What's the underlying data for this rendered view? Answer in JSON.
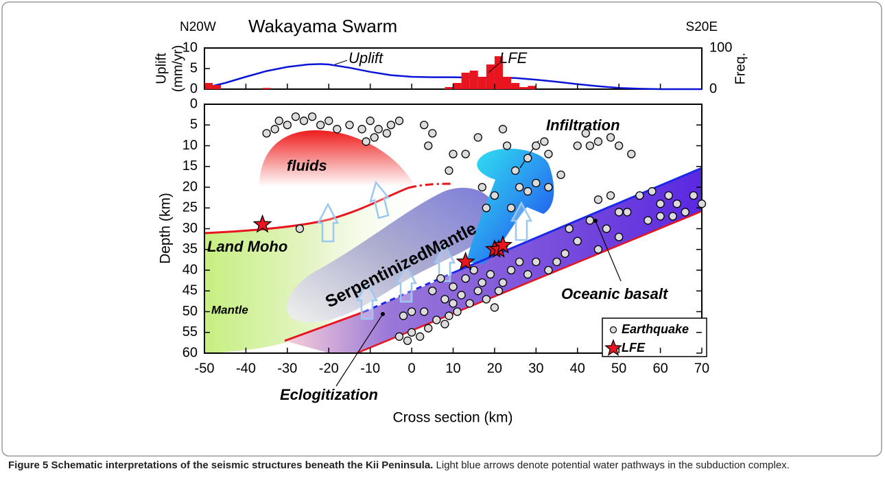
{
  "chart_data": [
    {
      "type": "combo",
      "title": "Wakayama Swarm",
      "direction_labels": [
        "N20W",
        "S20E"
      ],
      "y_label": [
        "Uplift",
        "(mm/yr)"
      ],
      "y2_label": "Freq.",
      "xlim": [
        -50,
        70
      ],
      "ylim": [
        0,
        10
      ],
      "yticks": [
        0,
        5,
        10
      ],
      "y2lim": [
        0,
        100
      ],
      "y2ticks": [
        0,
        100
      ],
      "series": [
        {
          "name": "Uplift",
          "type": "line",
          "color": "#0a14d8",
          "x": [
            -50,
            -45,
            -40,
            -35,
            -30,
            -25,
            -22,
            -20,
            -15,
            -10,
            -5,
            0,
            5,
            10,
            15,
            20,
            25,
            30,
            35,
            40,
            45,
            50,
            55,
            60,
            65,
            70
          ],
          "values": [
            0.3,
            1.5,
            3,
            4.4,
            5.4,
            6,
            6.1,
            6,
            5.2,
            4.2,
            3.4,
            3,
            2.9,
            2.9,
            2.8,
            2.8,
            2.7,
            2.3,
            1.8,
            1.2,
            0.7,
            0.3,
            0.1,
            0,
            0,
            0
          ]
        },
        {
          "name": "LFE",
          "type": "histogram",
          "axis": "y2",
          "color": "#e8141e",
          "bins": [
            -50,
            -48,
            -46,
            -44,
            -42,
            -40,
            -38,
            -36,
            -34,
            -32,
            -30,
            -28,
            -26,
            -24,
            -22,
            -20,
            -18,
            -16,
            -14,
            -12,
            -10,
            -8,
            -6,
            -4,
            -2,
            0,
            2,
            4,
            6,
            8,
            10,
            12,
            14,
            16,
            18,
            20,
            22,
            24,
            26,
            28,
            30
          ],
          "values": [
            15,
            10,
            0,
            0,
            0,
            0,
            0,
            3,
            0,
            0,
            0,
            0,
            0,
            0,
            0,
            0,
            0,
            0,
            0,
            0,
            0,
            0,
            0,
            0,
            0,
            0,
            0,
            0,
            0,
            5,
            15,
            40,
            45,
            30,
            60,
            80,
            30,
            15,
            5,
            8
          ]
        }
      ]
    },
    {
      "type": "scatter",
      "x_label": "Cross section (km)",
      "y_label": "Depth (km)",
      "xlim": [
        -50,
        70
      ],
      "xticks": [
        -50,
        -40,
        -30,
        -20,
        -10,
        0,
        10,
        20,
        30,
        40,
        50,
        60,
        70
      ],
      "ylim": [
        0,
        60
      ],
      "y_inverted": true,
      "yticks": [
        0,
        5,
        10,
        15,
        20,
        25,
        30,
        35,
        40,
        45,
        50,
        55,
        60
      ],
      "legend": "lower right",
      "series": [
        {
          "name": "Earthquake",
          "marker": "circle",
          "color": "#dcdcdc",
          "x": [
            -35,
            -33,
            -32,
            -30,
            -28,
            -26,
            -24,
            -22,
            -20,
            -18,
            -15,
            -12,
            -10,
            -9,
            -8,
            -6,
            -3,
            -11,
            -5,
            3,
            5,
            4,
            10,
            13,
            16,
            22,
            23,
            28,
            30,
            32,
            33,
            25,
            26,
            36,
            40,
            42,
            43,
            45,
            48,
            50,
            53,
            28,
            30,
            33,
            24,
            18,
            17,
            20,
            9,
            -27,
            43,
            45,
            48,
            50,
            52,
            55,
            58,
            60,
            62,
            64,
            66,
            68,
            70,
            47,
            50,
            45,
            57,
            60,
            63,
            40,
            38,
            37,
            35,
            33,
            30,
            28,
            26,
            24,
            22,
            21,
            20,
            19,
            18,
            17,
            16,
            15,
            14,
            13,
            12,
            11,
            10,
            9,
            8,
            7,
            6,
            5,
            4,
            3,
            2,
            0,
            -1,
            -2,
            -3,
            0,
            10,
            8
          ],
          "values": [
            7,
            6,
            4,
            5,
            3,
            4,
            3,
            5,
            4,
            6,
            5,
            6,
            4,
            8,
            6,
            7,
            4,
            9,
            5,
            5,
            7,
            10,
            12,
            12,
            8,
            6,
            10,
            13,
            10,
            9,
            12,
            16,
            20,
            17,
            10,
            7,
            10,
            9,
            8,
            10,
            12,
            21,
            19,
            20,
            25,
            25,
            20,
            22,
            16,
            30,
            28,
            23,
            22,
            26,
            26,
            22,
            21,
            24,
            22,
            24,
            26,
            22,
            24,
            30,
            32,
            35,
            28,
            27,
            27,
            33,
            30,
            36,
            38,
            40,
            38,
            41,
            38,
            40,
            43,
            45,
            49,
            41,
            47,
            43,
            45,
            40,
            48,
            42,
            46,
            50,
            44,
            51,
            47,
            42,
            52,
            45,
            54,
            50,
            56,
            55,
            57,
            51,
            56,
            50,
            48,
            53
          ]
        },
        {
          "name": "LFE",
          "marker": "star",
          "color": "#e8141e",
          "x": [
            -36,
            13,
            20,
            21,
            22
          ],
          "values": [
            29,
            38,
            35,
            35,
            34
          ]
        }
      ],
      "annotations": [
        "Infiltration",
        "fluids",
        "Land Moho",
        "SerpentinizedMantle",
        "Mantle",
        "Oceanic basalt",
        "Eclogitization"
      ]
    }
  ],
  "caption": {
    "title": "Figure 5 Schematic interpretations of the seismic structures beneath the Kii Peninsula.",
    "text": "Light blue arrows denote potential water pathways in the subduction complex."
  }
}
